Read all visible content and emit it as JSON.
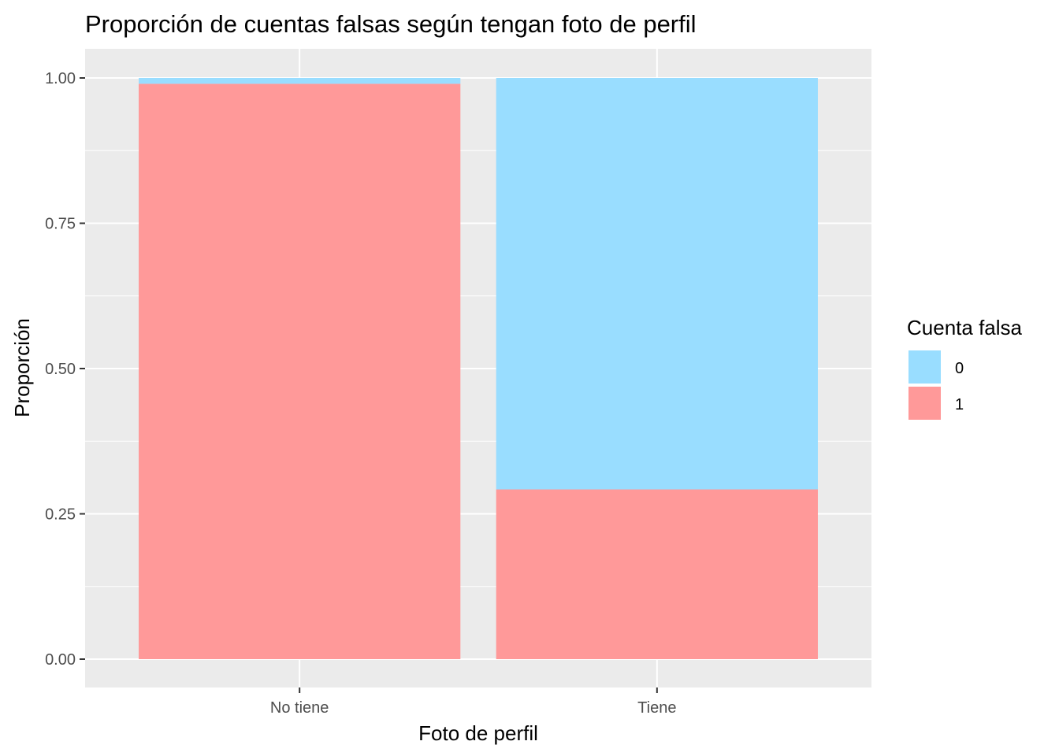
{
  "chart_data": {
    "type": "bar",
    "stacked": true,
    "title": "Proporción de cuentas falsas según tengan foto de perfil",
    "xlabel": "Foto de perfil",
    "ylabel": "Proporción",
    "categories": [
      "No tiene",
      "Tiene"
    ],
    "ylim": [
      0,
      1
    ],
    "yticks": [
      "0.00",
      "0.25",
      "0.50",
      "0.75",
      "1.00"
    ],
    "ytick_values": [
      0,
      0.25,
      0.5,
      0.75,
      1.0
    ],
    "series": [
      {
        "name": "0",
        "values": [
          0.01,
          0.708
        ],
        "color": "#99DDFF"
      },
      {
        "name": "1",
        "values": [
          0.99,
          0.292
        ],
        "color": "#FF9999"
      }
    ],
    "legend": {
      "title": "Cuenta falsa",
      "position": "right"
    },
    "panel_background": "#EBEBEB",
    "grid": true
  }
}
